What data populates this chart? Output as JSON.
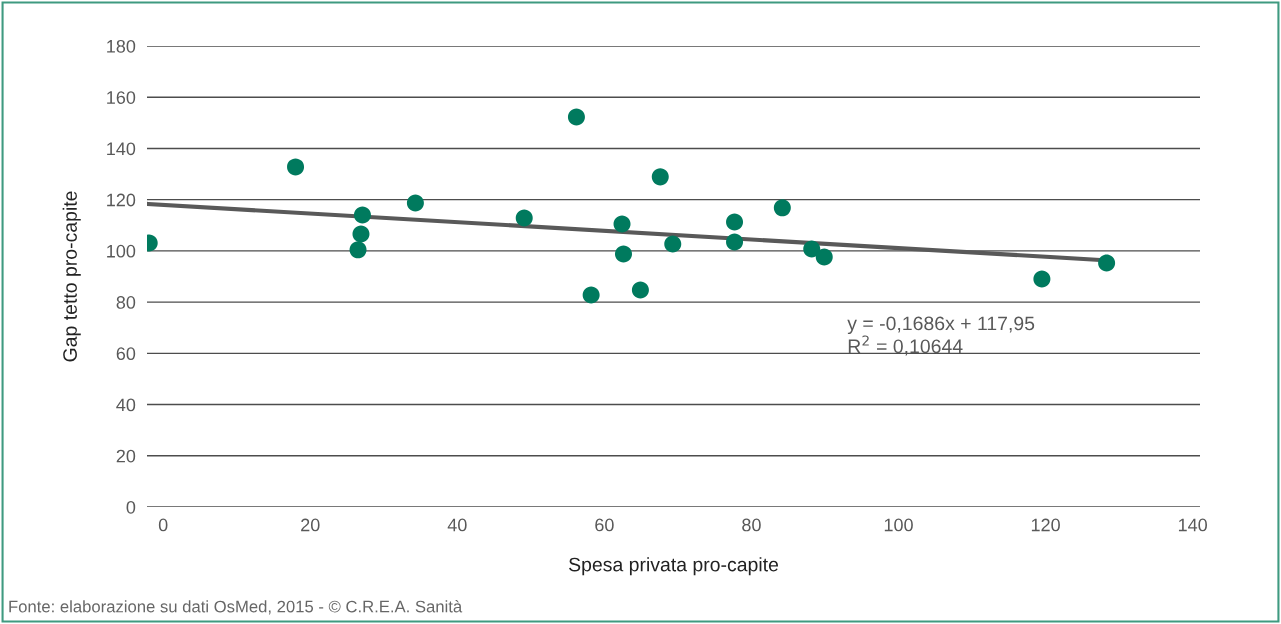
{
  "chart_data": {
    "type": "scatter",
    "xlabel": "Spesa privata pro-capite",
    "ylabel": "Gap tetto pro-capite",
    "x": [
      -1.9,
      18.0,
      27.1,
      26.9,
      26.5,
      34.3,
      49.1,
      56.2,
      58.2,
      62.4,
      62.6,
      64.9,
      67.6,
      69.3,
      77.7,
      77.7,
      84.2,
      88.2,
      89.9,
      119.5,
      128.3
    ],
    "series": [
      {
        "color": "#007a5e",
        "values": [
          103.1,
          132.8,
          114.0,
          106.6,
          100.4,
          118.7,
          112.8,
          152.3,
          82.8,
          110.5,
          98.8,
          84.7,
          128.9,
          102.7,
          111.3,
          103.5,
          116.8,
          100.7,
          97.6,
          89.0,
          95.3
        ]
      },
      {
        "type": "line",
        "color": "#595959",
        "x": [
          -2,
          128.3
        ],
        "values": [
          118.3,
          96.3
        ],
        "marker": "none"
      }
    ],
    "xlim": [
      -2.2,
      141
    ],
    "ylim": [
      0,
      180
    ],
    "xticks": [
      0,
      20,
      40,
      60,
      80,
      100,
      120,
      140
    ],
    "yticks": [
      0,
      20,
      40,
      60,
      80,
      100,
      120,
      140,
      160,
      180
    ],
    "grid": "y",
    "marker": "circle",
    "annotations": [
      "y = -0,1686x + 117,95",
      "R$^{2}$ = 0,10644",
      "Fonte: elaborazione su dati OsMed, 2015 - © C.R.E.A. Sanità"
    ]
  }
}
